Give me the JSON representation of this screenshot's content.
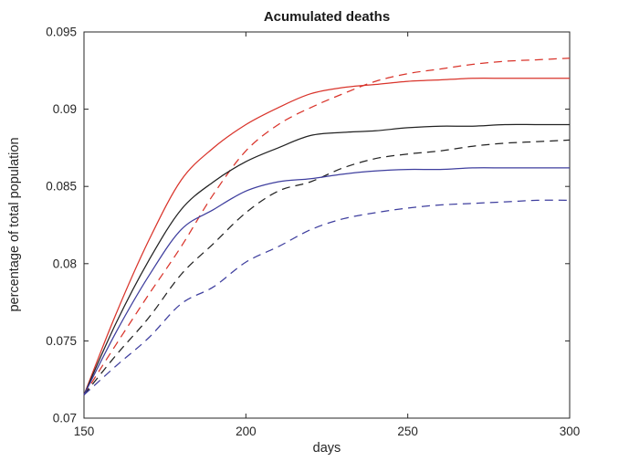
{
  "chart_data": {
    "type": "line",
    "title": "Acumulated deaths",
    "xlabel": "days",
    "ylabel": "percentage of total population",
    "xlim": [
      150,
      300
    ],
    "ylim": [
      0.07,
      0.095
    ],
    "x_ticks": [
      150,
      200,
      250,
      300
    ],
    "x_tick_labels": [
      "150",
      "200",
      "250",
      "300"
    ],
    "y_ticks": [
      0.07,
      0.075,
      0.08,
      0.085,
      0.09,
      0.095
    ],
    "y_tick_labels": [
      "0.07",
      "0.075",
      "0.08",
      "0.085",
      "0.09",
      "0.095"
    ],
    "grid": false,
    "legend": "none",
    "axis_color": "#262626",
    "x": [
      150,
      160,
      170,
      180,
      190,
      200,
      210,
      220,
      230,
      240,
      250,
      260,
      270,
      280,
      290,
      300
    ],
    "series": [
      {
        "name": "red-solid",
        "color": "#d9342b",
        "style": "solid",
        "values": [
          0.0715,
          0.0768,
          0.0815,
          0.0854,
          0.0875,
          0.089,
          0.0901,
          0.091,
          0.0914,
          0.0916,
          0.0918,
          0.0919,
          0.092,
          0.092,
          0.092,
          0.092
        ]
      },
      {
        "name": "red-dashed",
        "color": "#d9342b",
        "style": "dashed",
        "values": [
          0.0715,
          0.0748,
          0.078,
          0.0811,
          0.0845,
          0.0873,
          0.089,
          0.0901,
          0.091,
          0.0918,
          0.0923,
          0.0926,
          0.0929,
          0.0931,
          0.0932,
          0.0933
        ]
      },
      {
        "name": "black-solid",
        "color": "#222222",
        "style": "solid",
        "values": [
          0.0715,
          0.0762,
          0.0802,
          0.0835,
          0.0853,
          0.0866,
          0.0875,
          0.0883,
          0.0885,
          0.0886,
          0.0888,
          0.0889,
          0.0889,
          0.089,
          0.089,
          0.089
        ]
      },
      {
        "name": "black-dashed",
        "color": "#222222",
        "style": "dashed",
        "values": [
          0.0715,
          0.0741,
          0.0765,
          0.0793,
          0.0813,
          0.0833,
          0.0847,
          0.0853,
          0.0862,
          0.0868,
          0.0871,
          0.0873,
          0.0876,
          0.0878,
          0.0879,
          0.088
        ]
      },
      {
        "name": "blue-solid",
        "color": "#3e3e9e",
        "style": "solid",
        "values": [
          0.0715,
          0.0756,
          0.0792,
          0.0822,
          0.0835,
          0.0847,
          0.0853,
          0.0855,
          0.0858,
          0.086,
          0.0861,
          0.0861,
          0.0862,
          0.0862,
          0.0862,
          0.0862
        ]
      },
      {
        "name": "blue-dashed",
        "color": "#3e3e9e",
        "style": "dashed",
        "values": [
          0.0715,
          0.0734,
          0.0752,
          0.0774,
          0.0785,
          0.0801,
          0.0811,
          0.0822,
          0.0829,
          0.0833,
          0.0836,
          0.0838,
          0.0839,
          0.084,
          0.0841,
          0.0841
        ]
      }
    ]
  }
}
